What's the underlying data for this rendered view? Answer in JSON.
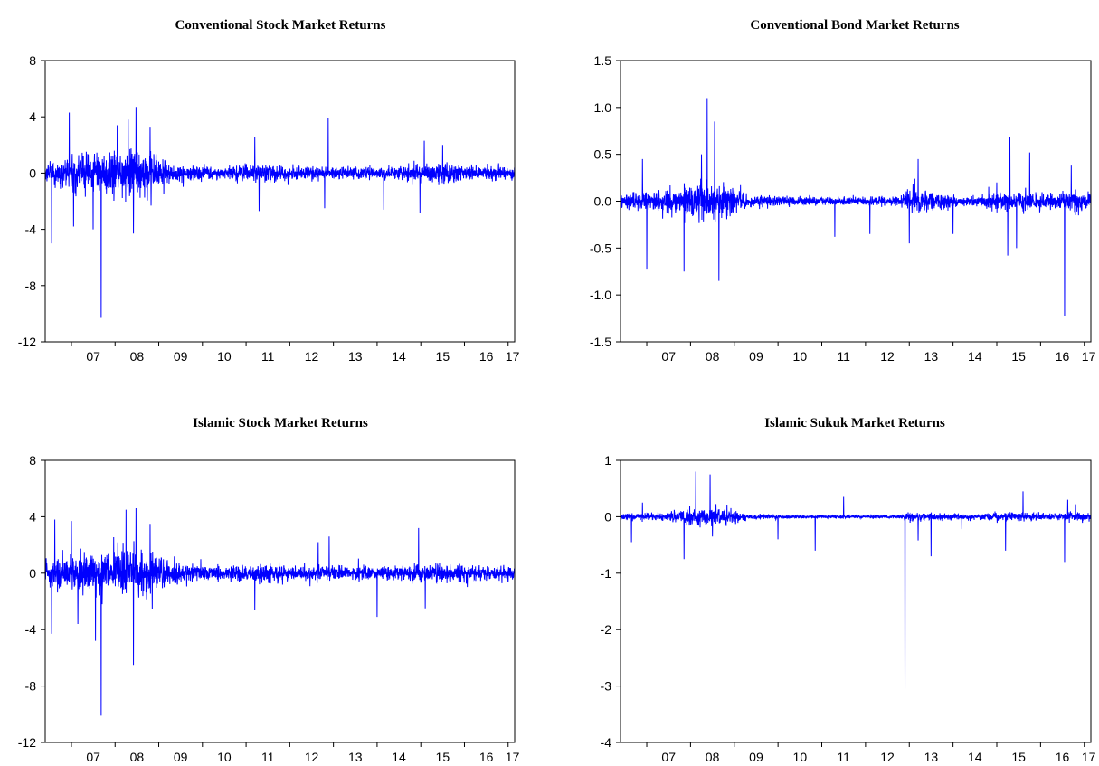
{
  "colors": {
    "series": "#0000ff",
    "frame": "#000000",
    "background": "#ffffff"
  },
  "chart_data": [
    {
      "type": "line",
      "title": "Conventional Stock Market Returns",
      "xlabel": "",
      "ylabel": "",
      "xlim": [
        2006.4,
        2017.15
      ],
      "ylim": [
        -12,
        8
      ],
      "yticks": [
        8,
        4,
        0,
        -4,
        -8,
        -12
      ],
      "ytick_labels": [
        "8",
        "4",
        "0",
        "-4",
        "-8",
        "-12"
      ],
      "xtick_labels": [
        "07",
        "08",
        "09",
        "10",
        "11",
        "12",
        "13",
        "14",
        "15",
        "16",
        "17"
      ],
      "grid": false,
      "legend": "none",
      "base_noise": 0.32,
      "volatility": [
        [
          2006.4,
          0.7
        ],
        [
          2007.3,
          1.3
        ],
        [
          2008.0,
          1.7
        ],
        [
          2008.8,
          1.8
        ],
        [
          2009.3,
          0.7
        ],
        [
          2010.5,
          0.45
        ],
        [
          2011.5,
          0.75
        ],
        [
          2012.2,
          0.5
        ],
        [
          2013.0,
          0.5
        ],
        [
          2014.0,
          0.4
        ],
        [
          2015.5,
          0.75
        ],
        [
          2016.5,
          0.5
        ],
        [
          2017.15,
          0.5
        ]
      ],
      "spikes": [
        [
          2006.55,
          -5.0
        ],
        [
          2006.95,
          4.3
        ],
        [
          2007.05,
          -3.8
        ],
        [
          2007.5,
          -4.0
        ],
        [
          2007.68,
          -10.3
        ],
        [
          2008.05,
          3.4
        ],
        [
          2008.3,
          3.8
        ],
        [
          2008.42,
          -4.3
        ],
        [
          2008.48,
          4.7
        ],
        [
          2008.8,
          3.3
        ],
        [
          2011.2,
          2.6
        ],
        [
          2011.3,
          -2.7
        ],
        [
          2012.8,
          -2.5
        ],
        [
          2012.88,
          3.9
        ],
        [
          2014.15,
          -2.6
        ],
        [
          2014.98,
          -2.8
        ],
        [
          2015.08,
          2.3
        ],
        [
          2015.5,
          2.0
        ]
      ]
    },
    {
      "type": "line",
      "title": "Conventional Bond Market Returns",
      "xlabel": "",
      "ylabel": "",
      "xlim": [
        2006.4,
        2017.15
      ],
      "ylim": [
        -1.5,
        1.5
      ],
      "yticks": [
        1.5,
        1.0,
        0.5,
        0.0,
        -0.5,
        -1.0,
        -1.5
      ],
      "ytick_labels": [
        "1.5",
        "1.0",
        "0.5",
        "0.0",
        "-0.5",
        "-1.0",
        "-1.5"
      ],
      "xtick_labels": [
        "07",
        "08",
        "09",
        "10",
        "11",
        "12",
        "13",
        "14",
        "15",
        "16",
        "17"
      ],
      "grid": false,
      "legend": "none",
      "base_noise": 0.06,
      "volatility": [
        [
          2006.4,
          0.08
        ],
        [
          2007.2,
          0.12
        ],
        [
          2008.0,
          0.2
        ],
        [
          2008.8,
          0.22
        ],
        [
          2009.3,
          0.07
        ],
        [
          2010.5,
          0.05
        ],
        [
          2012.8,
          0.05
        ],
        [
          2013.1,
          0.16
        ],
        [
          2013.6,
          0.09
        ],
        [
          2014.5,
          0.05
        ],
        [
          2015.2,
          0.12
        ],
        [
          2016.0,
          0.09
        ],
        [
          2017.15,
          0.1
        ]
      ],
      "spikes": [
        [
          2006.9,
          0.45
        ],
        [
          2007.0,
          -0.72
        ],
        [
          2007.85,
          -0.75
        ],
        [
          2008.25,
          0.5
        ],
        [
          2008.38,
          1.1
        ],
        [
          2008.55,
          0.85
        ],
        [
          2008.65,
          -0.85
        ],
        [
          2011.3,
          -0.38
        ],
        [
          2012.1,
          -0.35
        ],
        [
          2013.0,
          -0.45
        ],
        [
          2013.2,
          0.45
        ],
        [
          2014.0,
          -0.35
        ],
        [
          2015.0,
          0.2
        ],
        [
          2015.25,
          -0.58
        ],
        [
          2015.3,
          0.68
        ],
        [
          2015.45,
          -0.5
        ],
        [
          2015.75,
          0.52
        ],
        [
          2016.55,
          -1.22
        ],
        [
          2016.7,
          0.38
        ]
      ]
    },
    {
      "type": "line",
      "title": "Islamic Stock Market Returns",
      "xlabel": "",
      "ylabel": "",
      "xlim": [
        2006.4,
        2017.15
      ],
      "ylim": [
        -12,
        8
      ],
      "yticks": [
        8,
        4,
        0,
        -4,
        -8,
        -12
      ],
      "ytick_labels": [
        "8",
        "4",
        "0",
        "-4",
        "-8",
        "-12"
      ],
      "xtick_labels": [
        "07",
        "08",
        "09",
        "10",
        "11",
        "12",
        "13",
        "14",
        "15",
        "16",
        "17"
      ],
      "grid": false,
      "legend": "none",
      "base_noise": 0.32,
      "volatility": [
        [
          2006.4,
          1.0
        ],
        [
          2007.3,
          1.5
        ],
        [
          2008.0,
          1.8
        ],
        [
          2008.8,
          1.8
        ],
        [
          2009.3,
          0.8
        ],
        [
          2010.5,
          0.55
        ],
        [
          2011.5,
          0.75
        ],
        [
          2012.2,
          0.55
        ],
        [
          2013.0,
          0.55
        ],
        [
          2014.0,
          0.5
        ],
        [
          2015.5,
          0.7
        ],
        [
          2016.5,
          0.5
        ],
        [
          2017.15,
          0.5
        ]
      ],
      "spikes": [
        [
          2006.55,
          -4.3
        ],
        [
          2006.62,
          3.8
        ],
        [
          2007.0,
          3.7
        ],
        [
          2007.15,
          -3.6
        ],
        [
          2007.55,
          -4.8
        ],
        [
          2007.68,
          -10.1
        ],
        [
          2008.25,
          4.5
        ],
        [
          2008.42,
          -6.5
        ],
        [
          2008.48,
          4.6
        ],
        [
          2008.8,
          3.5
        ],
        [
          2011.2,
          -2.6
        ],
        [
          2012.65,
          2.2
        ],
        [
          2012.9,
          2.6
        ],
        [
          2014.0,
          -3.1
        ],
        [
          2014.95,
          3.2
        ],
        [
          2015.1,
          -2.5
        ]
      ]
    },
    {
      "type": "line",
      "title": "Islamic Sukuk Market Returns",
      "xlabel": "",
      "ylabel": "",
      "xlim": [
        2006.4,
        2017.15
      ],
      "ylim": [
        -4,
        1
      ],
      "yticks": [
        1,
        0,
        -1,
        -2,
        -3,
        -4
      ],
      "ytick_labels": [
        "1",
        "0",
        "-1",
        "-2",
        "-3",
        "-4"
      ],
      "xtick_labels": [
        "07",
        "08",
        "09",
        "10",
        "11",
        "12",
        "13",
        "14",
        "15",
        "16",
        "17"
      ],
      "grid": false,
      "legend": "none",
      "base_noise": 0.03,
      "volatility": [
        [
          2006.4,
          0.07
        ],
        [
          2007.5,
          0.08
        ],
        [
          2008.0,
          0.15
        ],
        [
          2008.8,
          0.18
        ],
        [
          2009.3,
          0.05
        ],
        [
          2011.0,
          0.03
        ],
        [
          2012.8,
          0.03
        ],
        [
          2013.0,
          0.1
        ],
        [
          2013.6,
          0.06
        ],
        [
          2014.5,
          0.05
        ],
        [
          2015.3,
          0.09
        ],
        [
          2016.0,
          0.07
        ],
        [
          2017.15,
          0.08
        ]
      ],
      "spikes": [
        [
          2006.65,
          -0.45
        ],
        [
          2006.9,
          0.25
        ],
        [
          2007.85,
          -0.75
        ],
        [
          2008.12,
          0.8
        ],
        [
          2008.45,
          0.75
        ],
        [
          2008.5,
          -0.35
        ],
        [
          2010.0,
          -0.4
        ],
        [
          2010.85,
          -0.6
        ],
        [
          2011.5,
          0.35
        ],
        [
          2012.9,
          -3.05
        ],
        [
          2013.2,
          -0.42
        ],
        [
          2013.5,
          -0.7
        ],
        [
          2014.2,
          -0.22
        ],
        [
          2015.2,
          -0.6
        ],
        [
          2015.6,
          0.45
        ],
        [
          2016.55,
          -0.8
        ],
        [
          2016.62,
          0.3
        ],
        [
          2016.8,
          0.22
        ]
      ]
    }
  ]
}
